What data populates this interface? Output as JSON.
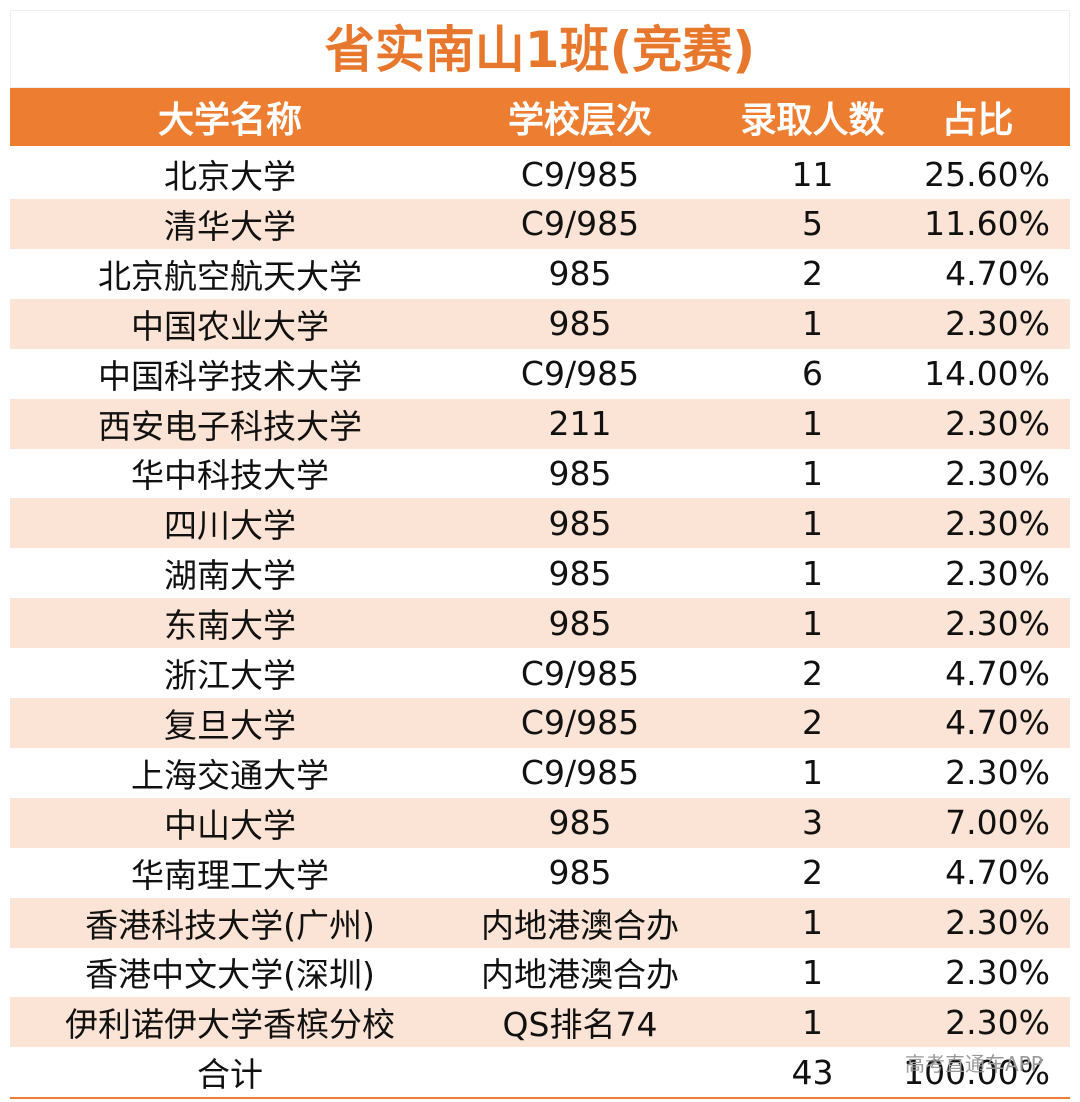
{
  "title": "省实南山1班(竞赛)",
  "table": {
    "header": [
      "大学名称",
      "学校层次",
      "录取人数",
      "占比"
    ],
    "rows": [
      [
        "北京大学",
        "C9/985",
        "11",
        "25.60%"
      ],
      [
        "清华大学",
        "C9/985",
        "5",
        "11.60%"
      ],
      [
        "北京航空航天大学",
        "985",
        "2",
        "4.70%"
      ],
      [
        "中国农业大学",
        "985",
        "1",
        "2.30%"
      ],
      [
        "中国科学技术大学",
        "C9/985",
        "6",
        "14.00%"
      ],
      [
        "西安电子科技大学",
        "211",
        "1",
        "2.30%"
      ],
      [
        "华中科技大学",
        "985",
        "1",
        "2.30%"
      ],
      [
        "四川大学",
        "985",
        "1",
        "2.30%"
      ],
      [
        "湖南大学",
        "985",
        "1",
        "2.30%"
      ],
      [
        "东南大学",
        "985",
        "1",
        "2.30%"
      ],
      [
        "浙江大学",
        "C9/985",
        "2",
        "4.70%"
      ],
      [
        "复旦大学",
        "C9/985",
        "2",
        "4.70%"
      ],
      [
        "上海交通大学",
        "C9/985",
        "1",
        "2.30%"
      ],
      [
        "中山大学",
        "985",
        "3",
        "7.00%"
      ],
      [
        "华南理工大学",
        "985",
        "2",
        "4.70%"
      ],
      [
        "香港科技大学(广州)",
        "内地港澳合办",
        "1",
        "2.30%"
      ],
      [
        "香港中文大学(深圳)",
        "内地港澳合办",
        "1",
        "2.30%"
      ],
      [
        "伊利诺伊大学香槟分校",
        "QS排名74",
        "1",
        "2.30%"
      ]
    ],
    "total": [
      "合计",
      "43",
      "100.00%"
    ]
  },
  "watermark": "高考直通车APP"
}
